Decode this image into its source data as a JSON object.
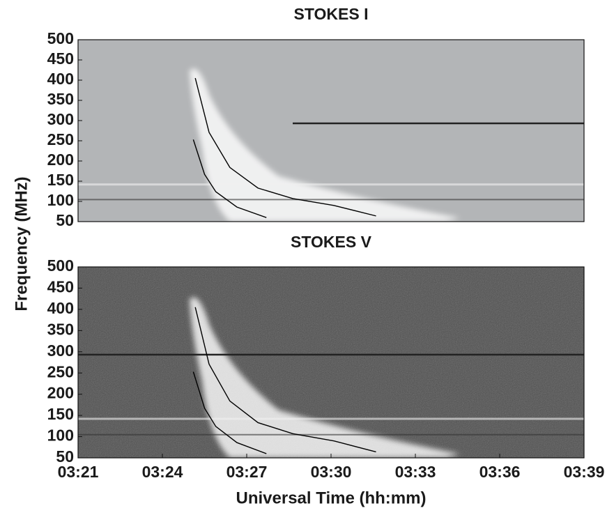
{
  "chart_data": [
    {
      "type": "spectrogram",
      "title": "STOKES I",
      "ylabel": "Frequency (MHz)",
      "xlim": [
        201,
        219
      ],
      "ylim": [
        50,
        500
      ],
      "yticks": [
        50,
        100,
        150,
        200,
        250,
        300,
        350,
        400,
        450,
        500
      ],
      "lines": [
        {
          "color": "#000000",
          "x": [
            205.17,
            205.66,
            206.4,
            207.4,
            208.64,
            210.1,
            211.6
          ],
          "y": [
            405,
            271,
            184,
            133,
            107,
            90,
            64
          ]
        },
        {
          "color": "#000000",
          "x": [
            205.1,
            205.5,
            205.9,
            206.65,
            207.7
          ],
          "y": [
            253,
            167,
            124,
            86,
            60
          ]
        }
      ]
    },
    {
      "type": "spectrogram",
      "title": "STOKES V",
      "xlabel": "Universal Time (hh:mm)",
      "xlim": [
        201,
        219
      ],
      "ylim": [
        50,
        500
      ],
      "yticks": [
        50,
        100,
        150,
        200,
        250,
        300,
        350,
        400,
        450,
        500
      ],
      "xticks": [
        {
          "value": 201,
          "label": "03:21"
        },
        {
          "value": 204,
          "label": "03:24"
        },
        {
          "value": 207,
          "label": "03:27"
        },
        {
          "value": 210,
          "label": "03:30"
        },
        {
          "value": 213,
          "label": "03:33"
        },
        {
          "value": 216,
          "label": "03:36"
        },
        {
          "value": 219,
          "label": "03:39"
        }
      ],
      "lines": [
        {
          "color": "#000000",
          "x": [
            205.17,
            205.66,
            206.4,
            207.4,
            208.64,
            210.1,
            211.6
          ],
          "y": [
            405,
            271,
            184,
            133,
            107,
            90,
            64
          ]
        },
        {
          "color": "#000000",
          "x": [
            205.1,
            205.5,
            205.9,
            206.65,
            207.7
          ],
          "y": [
            253,
            167,
            124,
            86,
            60
          ]
        }
      ]
    }
  ]
}
